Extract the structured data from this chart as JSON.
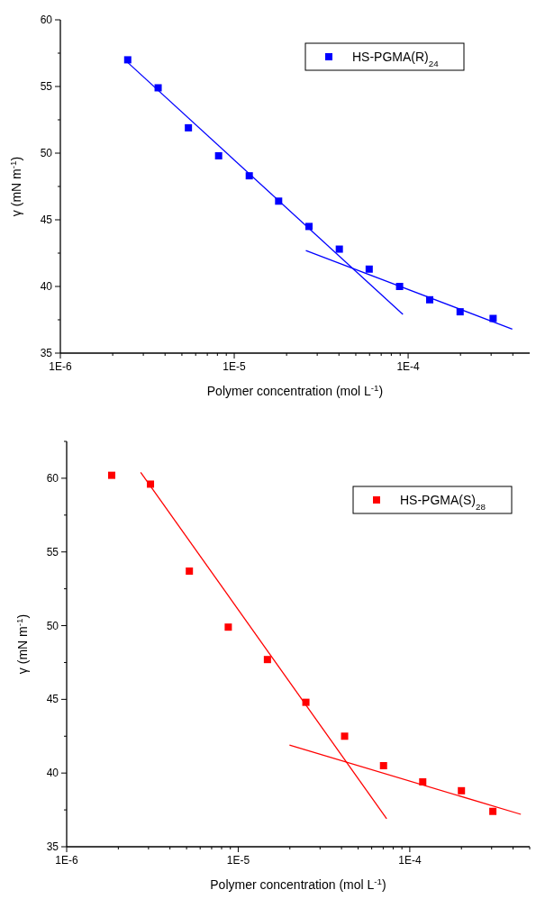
{
  "chart_data": [
    {
      "type": "scatter",
      "xlabel": "Polymer concentration (mol L$^{-1}$)",
      "ylabel": "γ (mN m$^{-1}$)",
      "log": "x",
      "xlim": [
        1e-06,
        0.0005
      ],
      "ylim": [
        35,
        60
      ],
      "xticks": [
        {
          "value": 1e-06,
          "label": "1E-6"
        },
        {
          "value": 2e-06,
          "label": null
        },
        {
          "value": 3e-06,
          "label": null
        },
        {
          "value": 4e-06,
          "label": null
        },
        {
          "value": 5e-06,
          "label": null
        },
        {
          "value": 6e-06,
          "label": null
        },
        {
          "value": 7e-06,
          "label": null
        },
        {
          "value": 8e-06,
          "label": null
        },
        {
          "value": 9e-06,
          "label": null
        },
        {
          "value": 1e-05,
          "label": "1E-5"
        },
        {
          "value": 2e-05,
          "label": null
        },
        {
          "value": 3e-05,
          "label": null
        },
        {
          "value": 4e-05,
          "label": null
        },
        {
          "value": 5e-05,
          "label": null
        },
        {
          "value": 6e-05,
          "label": null
        },
        {
          "value": 7e-05,
          "label": null
        },
        {
          "value": 8e-05,
          "label": null
        },
        {
          "value": 9e-05,
          "label": null
        },
        {
          "value": 0.0001,
          "label": "1E-4"
        },
        {
          "value": 0.0002,
          "label": null
        },
        {
          "value": 0.0003,
          "label": null
        },
        {
          "value": 0.0004,
          "label": null
        }
      ],
      "yticks": [
        35,
        {
          "value": 37.5,
          "label": null
        },
        40,
        {
          "value": 42.5,
          "label": null
        },
        45,
        {
          "value": 47.5,
          "label": null
        },
        50,
        {
          "value": 52.5,
          "label": null
        },
        55,
        {
          "value": 57.5,
          "label": null
        },
        60
      ],
      "legend": "top right",
      "marker": "square",
      "grid": false,
      "series": [
        {
          "name": "HS-PGMA(R)$_{24}$",
          "color": "#0000ff",
          "x": [
            2.44e-06,
            3.65e-06,
            5.45e-06,
            8.13e-06,
            1.22e-05,
            1.8e-05,
            2.69e-05,
            4.02e-05,
            5.97e-05,
            8.93e-05,
            0.000133,
            0.000199,
            0.000308
          ],
          "values": [
            57.0,
            54.9,
            51.9,
            49.8,
            48.3,
            46.4,
            44.5,
            42.8,
            41.3,
            40.0,
            39.0,
            38.1,
            37.6
          ]
        },
        {
          "type": "line",
          "marker": "none",
          "color": "#0000ff",
          "x": [
            2.44e-06,
            9.33e-05
          ],
          "values": [
            56.8,
            37.9
          ]
        },
        {
          "type": "line",
          "marker": "none",
          "color": "#0000ff",
          "x": [
            2.58e-05,
            0.000397
          ],
          "values": [
            42.7,
            36.8
          ]
        }
      ]
    },
    {
      "type": "scatter",
      "xlabel": "Polymer concentration (mol L$^{-1}$)",
      "ylabel": "γ (mN m$^{-1}$)",
      "log": "x",
      "xlim": [
        1e-06,
        0.0005
      ],
      "ylim": [
        35,
        62.5
      ],
      "xticks": [
        {
          "value": 1e-06,
          "label": "1E-6"
        },
        {
          "value": 2e-06,
          "label": null
        },
        {
          "value": 3e-06,
          "label": null
        },
        {
          "value": 4e-06,
          "label": null
        },
        {
          "value": 5e-06,
          "label": null
        },
        {
          "value": 6e-06,
          "label": null
        },
        {
          "value": 7e-06,
          "label": null
        },
        {
          "value": 8e-06,
          "label": null
        },
        {
          "value": 9e-06,
          "label": null
        },
        {
          "value": 1e-05,
          "label": "1E-5"
        },
        {
          "value": 2e-05,
          "label": null
        },
        {
          "value": 3e-05,
          "label": null
        },
        {
          "value": 4e-05,
          "label": null
        },
        {
          "value": 5e-05,
          "label": null
        },
        {
          "value": 6e-05,
          "label": null
        },
        {
          "value": 7e-05,
          "label": null
        },
        {
          "value": 8e-05,
          "label": null
        },
        {
          "value": 9e-05,
          "label": null
        },
        {
          "value": 0.0001,
          "label": "1E-4"
        },
        {
          "value": 0.0002,
          "label": null
        },
        {
          "value": 0.0003,
          "label": null
        },
        {
          "value": 0.0004,
          "label": null
        },
        {
          "value": 0.0005,
          "label": null
        }
      ],
      "yticks": [
        35,
        {
          "value": 37.5,
          "label": null
        },
        40,
        {
          "value": 42.5,
          "label": null
        },
        45,
        {
          "value": 47.5,
          "label": null
        },
        50,
        {
          "value": 52.5,
          "label": null
        },
        55,
        {
          "value": 57.5,
          "label": null
        },
        60,
        {
          "value": 62.5,
          "label": null
        }
      ],
      "legend": "top right",
      "marker": "square",
      "grid": false,
      "series": [
        {
          "name": "HS-PGMA(S)$_{28}$",
          "color": "#ff0000",
          "x": [
            1.83e-06,
            3.08e-06,
            5.19e-06,
            8.75e-06,
            1.48e-05,
            2.48e-05,
            4.17e-05,
            7.03e-05,
            0.000119,
            0.0002,
            0.000305
          ],
          "values": [
            60.2,
            59.6,
            53.7,
            49.9,
            47.7,
            44.8,
            42.5,
            40.5,
            39.4,
            38.8,
            37.4
          ]
        },
        {
          "type": "line",
          "marker": "none",
          "color": "#ff0000",
          "x": [
            2.7e-06,
            7.33e-05
          ],
          "values": [
            60.4,
            36.9
          ]
        },
        {
          "type": "line",
          "marker": "none",
          "color": "#ff0000",
          "x": [
            1.99e-05,
            0.000444
          ],
          "values": [
            41.9,
            37.2
          ]
        }
      ]
    }
  ]
}
